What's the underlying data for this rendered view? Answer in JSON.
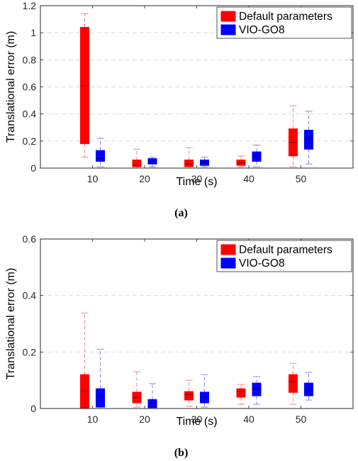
{
  "colors": {
    "default": "#ff0000",
    "vio": "#0000ff",
    "default_whisker": "#e88a8a",
    "vio_whisker": "#8a8ae0",
    "median": "#7a0000",
    "vio_median": "#00006a",
    "grid": "#d9d9d9"
  },
  "chart_data": [
    {
      "type": "box",
      "caption": "(a)",
      "xlabel": "Time (s)",
      "ylabel": "Translational error (m)",
      "categories": [
        "10",
        "20",
        "30",
        "40",
        "50"
      ],
      "ylim": [
        0,
        1.2
      ],
      "yticks": [
        0,
        0.2,
        0.4,
        0.6,
        0.8,
        1.0,
        1.2
      ],
      "ytick_labels": [
        "0",
        "0.2",
        "0.4",
        "0.6",
        "0.8",
        "1",
        "1.2"
      ],
      "grid": "horizontal dashed",
      "legend_position": "top-right",
      "series": [
        {
          "name": "Default parameters",
          "boxes": [
            {
              "min": 0.08,
              "q1": 0.18,
              "median": 0.61,
              "q3": 1.04,
              "max": 1.14
            },
            {
              "min": 0.0,
              "q1": 0.01,
              "median": 0.02,
              "q3": 0.06,
              "max": 0.14
            },
            {
              "min": 0.0,
              "q1": 0.01,
              "median": 0.03,
              "q3": 0.06,
              "max": 0.15
            },
            {
              "min": 0.01,
              "q1": 0.02,
              "median": 0.04,
              "q3": 0.06,
              "max": 0.09
            },
            {
              "min": 0.01,
              "q1": 0.09,
              "median": 0.19,
              "q3": 0.29,
              "max": 0.46
            }
          ]
        },
        {
          "name": "VIO-GO8",
          "boxes": [
            {
              "min": 0.01,
              "q1": 0.05,
              "median": 0.07,
              "q3": 0.13,
              "max": 0.22
            },
            {
              "min": 0.01,
              "q1": 0.03,
              "median": 0.05,
              "q3": 0.07,
              "max": 0.08
            },
            {
              "min": 0.01,
              "q1": 0.02,
              "median": 0.04,
              "q3": 0.06,
              "max": 0.08
            },
            {
              "min": 0.01,
              "q1": 0.05,
              "median": 0.09,
              "q3": 0.12,
              "max": 0.17
            },
            {
              "min": 0.03,
              "q1": 0.14,
              "median": 0.22,
              "q3": 0.28,
              "max": 0.42
            }
          ]
        }
      ]
    },
    {
      "type": "box",
      "caption": "(b)",
      "xlabel": "Time (s)",
      "ylabel": "Translational error (m)",
      "categories": [
        "10",
        "20",
        "30",
        "40",
        "50"
      ],
      "ylim": [
        0,
        0.6
      ],
      "yticks": [
        0,
        0.2,
        0.4,
        0.6
      ],
      "ytick_labels": [
        "0",
        "0.2",
        "0.4",
        "0.6"
      ],
      "grid": "horizontal dashed",
      "legend_position": "top-right",
      "series": [
        {
          "name": "Default parameters",
          "boxes": [
            {
              "min": 0.0,
              "q1": 0.0,
              "median": 0.063,
              "q3": 0.12,
              "max": 0.338
            },
            {
              "min": 0.005,
              "q1": 0.02,
              "median": 0.04,
              "q3": 0.058,
              "max": 0.13
            },
            {
              "min": 0.008,
              "q1": 0.03,
              "median": 0.05,
              "q3": 0.06,
              "max": 0.1
            },
            {
              "min": 0.015,
              "q1": 0.04,
              "median": 0.06,
              "q3": 0.07,
              "max": 0.085
            },
            {
              "min": 0.015,
              "q1": 0.057,
              "median": 0.095,
              "q3": 0.12,
              "max": 0.16
            }
          ]
        },
        {
          "name": "VIO-GO8",
          "boxes": [
            {
              "min": 0.0,
              "q1": 0.005,
              "median": 0.045,
              "q3": 0.07,
              "max": 0.21
            },
            {
              "min": 0.0,
              "q1": 0.003,
              "median": 0.02,
              "q3": 0.032,
              "max": 0.088
            },
            {
              "min": 0.005,
              "q1": 0.02,
              "median": 0.04,
              "q3": 0.058,
              "max": 0.12
            },
            {
              "min": 0.015,
              "q1": 0.045,
              "median": 0.07,
              "q3": 0.09,
              "max": 0.113
            },
            {
              "min": 0.03,
              "q1": 0.045,
              "median": 0.06,
              "q3": 0.09,
              "max": 0.128
            }
          ]
        }
      ]
    }
  ]
}
